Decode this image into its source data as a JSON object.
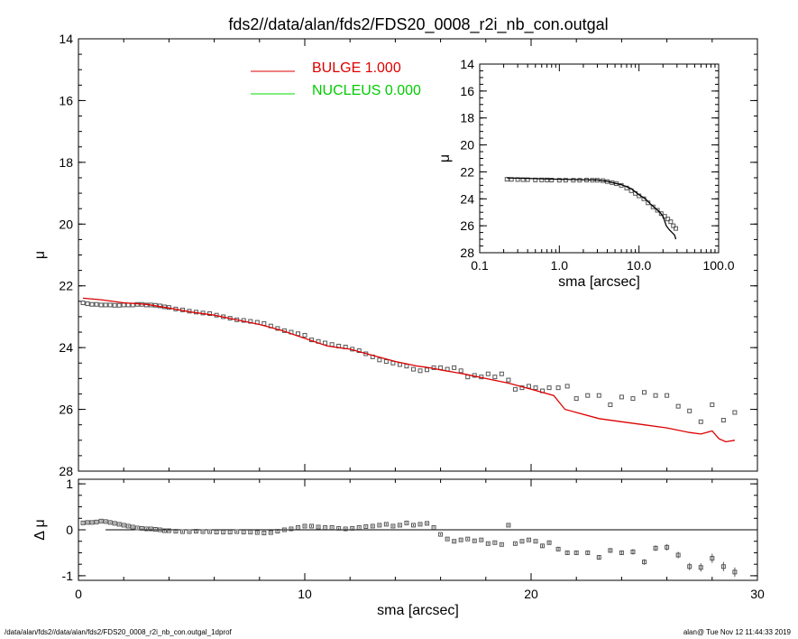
{
  "title": "fds2//data/alan/fds2/FDS20_0008_r2i_nb_con.outgal",
  "footer": {
    "left": "/data/alan/fds2//data/alan/fds2/FDS20_0008_r2i_nb_con.outgal_1dprof",
    "right": "alan@  Tue Nov 12 11:44:33 2019"
  },
  "legend": [
    {
      "label": "BULGE  1.000",
      "color": "#dd0000"
    },
    {
      "label": "NUCLEUS  0.000",
      "color": "#00dd00"
    }
  ],
  "colors": {
    "data": "#555555",
    "model": "#dd0000",
    "axis": "#000000"
  },
  "chart_data": [
    {
      "type": "scatter",
      "title": "",
      "xlabel": "sma [arcsec]",
      "ylabel": "μ",
      "xlim": [
        0,
        30
      ],
      "ylim": [
        28,
        14
      ],
      "xticks": [
        "0",
        "10",
        "20",
        "30"
      ],
      "yticks": [
        "14",
        "16",
        "18",
        "20",
        "22",
        "24",
        "26",
        "28"
      ],
      "series": [
        {
          "name": "data",
          "x": [
            0.2,
            0.4,
            0.6,
            0.8,
            1.0,
            1.2,
            1.4,
            1.6,
            1.8,
            2.0,
            2.2,
            2.4,
            2.6,
            2.8,
            3.0,
            3.2,
            3.4,
            3.6,
            3.8,
            4.0,
            4.3,
            4.6,
            4.9,
            5.2,
            5.5,
            5.8,
            6.1,
            6.4,
            6.7,
            7.0,
            7.3,
            7.6,
            7.9,
            8.2,
            8.5,
            8.8,
            9.1,
            9.4,
            9.7,
            10.0,
            10.3,
            10.6,
            10.9,
            11.2,
            11.5,
            11.8,
            12.1,
            12.4,
            12.7,
            13.0,
            13.3,
            13.6,
            13.9,
            14.2,
            14.5,
            14.8,
            15.1,
            15.4,
            15.7,
            16.0,
            16.3,
            16.6,
            16.9,
            17.2,
            17.5,
            17.8,
            18.1,
            18.4,
            18.7,
            19.0,
            19.3,
            19.6,
            19.9,
            20.2,
            20.5,
            20.8,
            21.2,
            21.6,
            22.0,
            22.5,
            23.0,
            23.5,
            24.0,
            24.5,
            25.0,
            25.5,
            26.0,
            26.5,
            27.0,
            27.5,
            28.0,
            28.5,
            29.0
          ],
          "y": [
            22.55,
            22.58,
            22.6,
            22.6,
            22.62,
            22.62,
            22.62,
            22.63,
            22.63,
            22.62,
            22.62,
            22.62,
            22.6,
            22.6,
            22.62,
            22.62,
            22.63,
            22.65,
            22.68,
            22.7,
            22.75,
            22.78,
            22.82,
            22.85,
            22.88,
            22.9,
            22.95,
            23.0,
            23.05,
            23.1,
            23.12,
            23.15,
            23.18,
            23.22,
            23.3,
            23.38,
            23.45,
            23.5,
            23.55,
            23.6,
            23.75,
            23.8,
            23.85,
            23.9,
            23.95,
            23.98,
            24.05,
            24.1,
            24.2,
            24.3,
            24.4,
            24.45,
            24.5,
            24.55,
            24.6,
            24.7,
            24.75,
            24.72,
            24.65,
            24.65,
            24.7,
            24.65,
            24.75,
            24.95,
            24.9,
            24.95,
            24.85,
            24.95,
            24.85,
            25.05,
            25.35,
            25.3,
            25.25,
            25.3,
            25.4,
            25.3,
            25.3,
            25.25,
            25.65,
            25.55,
            25.55,
            25.85,
            25.6,
            25.65,
            25.45,
            25.55,
            25.55,
            25.9,
            26.05,
            26.4,
            25.85,
            26.35,
            26.1
          ]
        },
        {
          "name": "BULGE  1.000",
          "x": [
            0.2,
            1.0,
            2.0,
            3.0,
            4.0,
            5.0,
            6.0,
            7.0,
            8.0,
            9.0,
            10.0,
            11.0,
            12.0,
            13.0,
            14.0,
            15.0,
            15.5,
            16.0,
            17.0,
            18.0,
            19.0,
            20.0,
            21.0,
            21.5,
            22.0,
            23.0,
            24.0,
            25.0,
            26.0,
            27.0,
            27.5,
            28.0,
            28.3,
            28.6,
            29.0
          ],
          "y": [
            22.4,
            22.45,
            22.55,
            22.6,
            22.72,
            22.85,
            22.95,
            23.1,
            23.25,
            23.45,
            23.7,
            23.95,
            24.05,
            24.25,
            24.45,
            24.6,
            24.65,
            24.72,
            24.85,
            25.0,
            25.15,
            25.35,
            25.55,
            26.0,
            26.1,
            26.3,
            26.4,
            26.5,
            26.6,
            26.75,
            26.8,
            26.7,
            26.95,
            27.05,
            27.0
          ]
        }
      ]
    },
    {
      "type": "scatter",
      "title": "",
      "xlabel": "sma [arcsec]",
      "ylabel": "Δ μ",
      "xlim": [
        0,
        30
      ],
      "ylim": [
        -1.1,
        1.1
      ],
      "xticks": [
        "0",
        "10",
        "20",
        "30"
      ],
      "yticks": [
        "1",
        "0",
        "-1"
      ],
      "series": [
        {
          "name": "residual",
          "x": [
            0.2,
            0.4,
            0.6,
            0.8,
            1.0,
            1.2,
            1.4,
            1.6,
            1.8,
            2.0,
            2.2,
            2.4,
            2.6,
            2.8,
            3.0,
            3.2,
            3.4,
            3.6,
            3.8,
            4.0,
            4.3,
            4.6,
            4.9,
            5.2,
            5.5,
            5.8,
            6.1,
            6.4,
            6.7,
            7.0,
            7.3,
            7.6,
            7.9,
            8.2,
            8.5,
            8.8,
            9.1,
            9.4,
            9.7,
            10.0,
            10.3,
            10.6,
            10.9,
            11.2,
            11.5,
            11.8,
            12.1,
            12.4,
            12.7,
            13.0,
            13.3,
            13.6,
            13.9,
            14.2,
            14.5,
            14.8,
            15.1,
            15.4,
            15.7,
            16.0,
            16.3,
            16.6,
            16.9,
            17.2,
            17.5,
            17.8,
            18.1,
            18.4,
            18.7,
            19.0,
            19.3,
            19.6,
            19.9,
            20.2,
            20.5,
            20.8,
            21.2,
            21.6,
            22.0,
            22.5,
            23.0,
            23.5,
            24.0,
            24.5,
            25.0,
            25.5,
            26.0,
            26.5,
            27.0,
            27.5,
            28.0,
            28.5,
            29.0
          ],
          "y": [
            0.15,
            0.16,
            0.16,
            0.17,
            0.19,
            0.18,
            0.16,
            0.14,
            0.12,
            0.1,
            0.08,
            0.06,
            0.04,
            0.03,
            0.02,
            0.02,
            0.01,
            0.0,
            -0.02,
            -0.02,
            -0.03,
            -0.04,
            -0.04,
            -0.03,
            -0.04,
            -0.04,
            -0.05,
            -0.05,
            -0.05,
            -0.04,
            -0.05,
            -0.05,
            -0.06,
            -0.07,
            -0.06,
            -0.03,
            0.0,
            0.02,
            0.05,
            0.08,
            0.08,
            0.06,
            0.05,
            0.05,
            0.03,
            0.02,
            0.03,
            0.05,
            0.07,
            0.08,
            0.1,
            0.12,
            0.08,
            0.1,
            0.15,
            0.1,
            0.12,
            0.14,
            0.05,
            -0.1,
            -0.2,
            -0.25,
            -0.22,
            -0.2,
            -0.24,
            -0.22,
            -0.3,
            -0.28,
            -0.32,
            0.1,
            -0.3,
            -0.25,
            -0.22,
            -0.25,
            -0.35,
            -0.28,
            -0.42,
            -0.5,
            -0.5,
            -0.5,
            -0.6,
            -0.45,
            -0.5,
            -0.48,
            -0.7,
            -0.4,
            -0.38,
            -0.55,
            -0.8,
            -0.82,
            -0.62,
            -0.8,
            -0.92
          ],
          "errors": [
            0.02,
            0.02,
            0.02,
            0.02,
            0.02,
            0.02,
            0.02,
            0.02,
            0.02,
            0.02,
            0.02,
            0.02,
            0.02,
            0.02,
            0.02,
            0.02,
            0.02,
            0.02,
            0.02,
            0.02,
            0.02,
            0.02,
            0.02,
            0.02,
            0.02,
            0.02,
            0.02,
            0.02,
            0.02,
            0.02,
            0.02,
            0.02,
            0.02,
            0.02,
            0.02,
            0.02,
            0.02,
            0.02,
            0.02,
            0.02,
            0.02,
            0.02,
            0.02,
            0.02,
            0.02,
            0.02,
            0.02,
            0.02,
            0.02,
            0.02,
            0.02,
            0.02,
            0.02,
            0.02,
            0.02,
            0.02,
            0.02,
            0.02,
            0.02,
            0.02,
            0.02,
            0.02,
            0.02,
            0.02,
            0.02,
            0.02,
            0.02,
            0.02,
            0.02,
            0.02,
            0.02,
            0.02,
            0.02,
            0.02,
            0.03,
            0.03,
            0.03,
            0.04,
            0.04,
            0.04,
            0.05,
            0.05,
            0.05,
            0.06,
            0.06,
            0.06,
            0.07,
            0.07,
            0.08,
            0.09,
            0.1,
            0.1,
            0.1
          ]
        }
      ]
    },
    {
      "type": "scatter",
      "title": "",
      "xlabel": "sma [arcsec]",
      "ylabel": "μ",
      "xscale": "log",
      "xlim": [
        0.1,
        100
      ],
      "ylim": [
        28,
        14
      ],
      "xticks": [
        "0.1",
        "1.0",
        "10.0",
        "100.0"
      ],
      "yticks": [
        "14",
        "16",
        "18",
        "20",
        "22",
        "24",
        "26",
        "28"
      ],
      "series": [
        {
          "name": "data",
          "x": [
            0.22,
            0.25,
            0.3,
            0.35,
            0.4,
            0.5,
            0.6,
            0.7,
            0.8,
            1.0,
            1.2,
            1.5,
            1.8,
            2.2,
            2.6,
            3.0,
            3.5,
            4.0,
            4.6,
            5.2,
            6.0,
            7.0,
            8.0,
            9.0,
            10.0,
            11.5,
            13.0,
            15.0,
            17.0,
            19.0,
            21.0,
            23.0,
            25.0,
            27.0,
            29.0
          ],
          "y": [
            22.55,
            22.56,
            22.57,
            22.58,
            22.58,
            22.6,
            22.6,
            22.6,
            22.61,
            22.62,
            22.62,
            22.62,
            22.62,
            22.61,
            22.62,
            22.62,
            22.65,
            22.72,
            22.8,
            22.88,
            23.0,
            23.2,
            23.4,
            23.6,
            23.78,
            24.0,
            24.3,
            24.6,
            24.85,
            25.1,
            25.3,
            25.5,
            25.7,
            26.0,
            26.2
          ]
        },
        {
          "name": "BULGE  1.000",
          "x": [
            0.22,
            0.5,
            1.0,
            2.0,
            3.0,
            4.0,
            5.0,
            6.0,
            7.0,
            8.0,
            10.0,
            12.0,
            14.0,
            16.0,
            18.0,
            20.0,
            22.0,
            24.0,
            26.0,
            28.0,
            29.0
          ],
          "y": [
            22.45,
            22.5,
            22.55,
            22.58,
            22.6,
            22.7,
            22.85,
            22.95,
            23.1,
            23.25,
            23.7,
            24.0,
            24.4,
            24.7,
            24.95,
            25.3,
            26.0,
            26.3,
            26.5,
            26.7,
            27.0
          ]
        }
      ]
    }
  ]
}
